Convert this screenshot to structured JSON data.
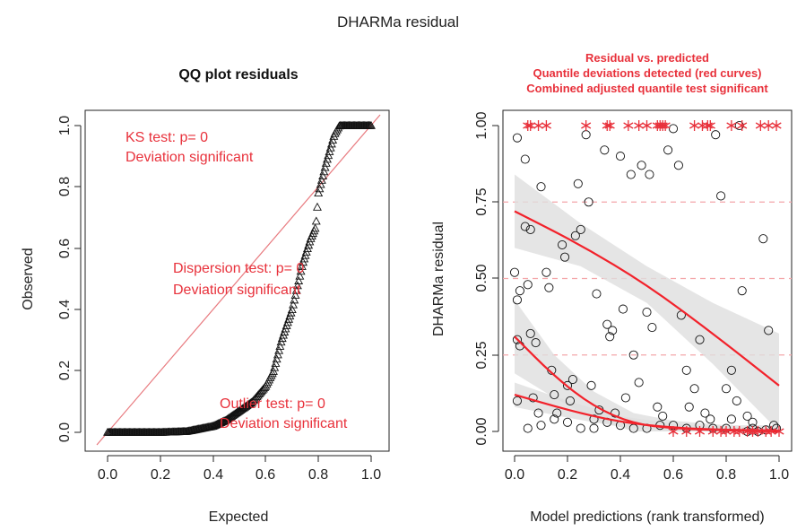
{
  "figure": {
    "title": "DHARMa residual"
  },
  "chart_data": [
    {
      "type": "scatter",
      "panel": "qq",
      "title": "QQ plot residuals",
      "xlabel": "Expected",
      "ylabel": "Observed",
      "xlim": [
        0,
        1
      ],
      "ylim": [
        0,
        1
      ],
      "x_ticks": [
        "0.0",
        "0.2",
        "0.4",
        "0.6",
        "0.8",
        "1.0"
      ],
      "y_ticks": [
        "0.0",
        "0.2",
        "0.4",
        "0.6",
        "0.8",
        "1.0"
      ],
      "grid": false,
      "marker": "triangle",
      "reference_line": {
        "from": [
          0,
          0
        ],
        "to": [
          1,
          1
        ],
        "color": "#e87a7f"
      },
      "curve": [
        [
          0.0,
          0.0
        ],
        [
          0.2,
          0.0
        ],
        [
          0.3,
          0.003
        ],
        [
          0.4,
          0.02
        ],
        [
          0.45,
          0.04
        ],
        [
          0.5,
          0.07
        ],
        [
          0.55,
          0.1
        ],
        [
          0.6,
          0.15
        ],
        [
          0.63,
          0.2
        ],
        [
          0.66,
          0.3
        ],
        [
          0.7,
          0.4
        ],
        [
          0.74,
          0.55
        ],
        [
          0.77,
          0.63
        ],
        [
          0.79,
          0.67
        ],
        [
          0.8,
          0.78
        ],
        [
          0.83,
          0.88
        ],
        [
          0.86,
          0.97
        ],
        [
          0.88,
          1.0
        ],
        [
          1.0,
          1.0
        ]
      ],
      "annotations": [
        {
          "lines": [
            "KS test: p= 0",
            "Deviation  significant"
          ],
          "color": "#e8313b"
        },
        {
          "lines": [
            "Dispersion test: p= 0",
            "Deviation  significant"
          ],
          "color": "#e8313b"
        },
        {
          "lines": [
            "Outlier test: p= 0",
            "Deviation  significant"
          ],
          "color": "#e8313b"
        }
      ]
    },
    {
      "type": "scatter",
      "panel": "residual-vs-predicted",
      "title_lines": [
        "Residual vs. predicted",
        "Quantile deviations detected (red curves)",
        "Combined adjusted quantile test significant"
      ],
      "title_color": "#e8313b",
      "xlabel": "Model predictions (rank transformed)",
      "ylabel": "DHARMa residual",
      "xlim": [
        0,
        1
      ],
      "ylim": [
        0,
        1
      ],
      "x_ticks": [
        "0.0",
        "0.2",
        "0.4",
        "0.6",
        "0.8",
        "1.0"
      ],
      "y_ticks": [
        "0.00",
        "0.25",
        "0.50",
        "0.75",
        "1.00"
      ],
      "grid": false,
      "reference_lines_y": [
        0.25,
        0.5,
        0.75
      ],
      "reference_color": "#f4a6aa",
      "quantile_curves": [
        {
          "q": 0.75,
          "points": [
            [
              0,
              0.72
            ],
            [
              0.25,
              0.61
            ],
            [
              0.5,
              0.48
            ],
            [
              0.75,
              0.32
            ],
            [
              1.0,
              0.15
            ]
          ],
          "band_upper": [
            [
              0,
              0.84
            ],
            [
              0.25,
              0.68
            ],
            [
              0.5,
              0.54
            ],
            [
              0.75,
              0.42
            ],
            [
              1.0,
              0.32
            ]
          ],
          "band_lower": [
            [
              0,
              0.6
            ],
            [
              0.25,
              0.54
            ],
            [
              0.5,
              0.42
            ],
            [
              0.75,
              0.22
            ],
            [
              1.0,
              0.0
            ]
          ]
        },
        {
          "q": 0.5,
          "points": [
            [
              0,
              0.31
            ],
            [
              0.15,
              0.18
            ],
            [
              0.3,
              0.08
            ],
            [
              0.45,
              0.025
            ],
            [
              0.6,
              0.01
            ],
            [
              0.8,
              0.003
            ],
            [
              1.0,
              0.0
            ]
          ],
          "band_upper": [
            [
              0,
              0.43
            ],
            [
              0.15,
              0.25
            ],
            [
              0.3,
              0.13
            ],
            [
              0.45,
              0.06
            ],
            [
              0.6,
              0.035
            ],
            [
              0.8,
              0.02
            ],
            [
              1.0,
              0.02
            ]
          ],
          "band_lower": [
            [
              0,
              0.19
            ],
            [
              0.15,
              0.11
            ],
            [
              0.3,
              0.04
            ],
            [
              0.45,
              0.0
            ],
            [
              0.6,
              0.0
            ],
            [
              0.8,
              0.0
            ],
            [
              1.0,
              0.0
            ]
          ]
        },
        {
          "q": 0.25,
          "points": [
            [
              0,
              0.12
            ],
            [
              0.2,
              0.07
            ],
            [
              0.4,
              0.03
            ],
            [
              0.6,
              0.012
            ],
            [
              0.8,
              0.005
            ],
            [
              1.0,
              0.003
            ]
          ],
          "band_upper": [
            [
              0,
              0.16
            ],
            [
              0.2,
              0.1
            ],
            [
              0.4,
              0.05
            ],
            [
              0.6,
              0.025
            ],
            [
              0.8,
              0.015
            ],
            [
              1.0,
              0.01
            ]
          ],
          "band_lower": [
            [
              0,
              0.08
            ],
            [
              0.2,
              0.045
            ],
            [
              0.4,
              0.015
            ],
            [
              0.6,
              0.0
            ],
            [
              0.8,
              0.0
            ],
            [
              1.0,
              0.0
            ]
          ]
        }
      ],
      "curve_color": "#f2222b",
      "band_color": "#dedede",
      "points": [
        [
          0.01,
          0.96
        ],
        [
          0.0,
          0.52
        ],
        [
          0.01,
          0.43
        ],
        [
          0.02,
          0.46
        ],
        [
          0.01,
          0.3
        ],
        [
          0.02,
          0.28
        ],
        [
          0.01,
          0.1
        ],
        [
          0.04,
          0.89
        ],
        [
          0.06,
          0.66
        ],
        [
          0.04,
          0.67
        ],
        [
          0.05,
          0.48
        ],
        [
          0.06,
          0.32
        ],
        [
          0.08,
          0.29
        ],
        [
          0.07,
          0.11
        ],
        [
          0.1,
          0.8
        ],
        [
          0.09,
          0.06
        ],
        [
          0.12,
          0.52
        ],
        [
          0.13,
          0.47
        ],
        [
          0.14,
          0.2
        ],
        [
          0.15,
          0.12
        ],
        [
          0.16,
          0.06
        ],
        [
          0.18,
          0.61
        ],
        [
          0.19,
          0.57
        ],
        [
          0.2,
          0.15
        ],
        [
          0.21,
          0.1
        ],
        [
          0.22,
          0.17
        ],
        [
          0.24,
          0.81
        ],
        [
          0.23,
          0.64
        ],
        [
          0.25,
          0.66
        ],
        [
          0.27,
          0.97
        ],
        [
          0.28,
          0.75
        ],
        [
          0.29,
          0.15
        ],
        [
          0.3,
          0.04
        ],
        [
          0.31,
          0.45
        ],
        [
          0.32,
          0.07
        ],
        [
          0.34,
          0.92
        ],
        [
          0.35,
          0.35
        ],
        [
          0.36,
          0.31
        ],
        [
          0.37,
          0.33
        ],
        [
          0.38,
          0.06
        ],
        [
          0.4,
          0.9
        ],
        [
          0.41,
          0.4
        ],
        [
          0.42,
          0.11
        ],
        [
          0.44,
          0.84
        ],
        [
          0.45,
          0.25
        ],
        [
          0.47,
          0.16
        ],
        [
          0.48,
          0.87
        ],
        [
          0.5,
          0.39
        ],
        [
          0.51,
          0.84
        ],
        [
          0.52,
          0.34
        ],
        [
          0.54,
          0.08
        ],
        [
          0.56,
          0.05
        ],
        [
          0.58,
          0.92
        ],
        [
          0.6,
          0.99
        ],
        [
          0.62,
          0.87
        ],
        [
          0.63,
          0.38
        ],
        [
          0.65,
          0.2
        ],
        [
          0.66,
          0.08
        ],
        [
          0.68,
          0.14
        ],
        [
          0.7,
          0.3
        ],
        [
          0.72,
          0.06
        ],
        [
          0.74,
          0.04
        ],
        [
          0.76,
          0.97
        ],
        [
          0.78,
          0.77
        ],
        [
          0.8,
          0.14
        ],
        [
          0.82,
          0.2
        ],
        [
          0.84,
          0.1
        ],
        [
          0.86,
          0.46
        ],
        [
          0.88,
          0.05
        ],
        [
          0.9,
          0.03
        ],
        [
          0.94,
          0.63
        ],
        [
          0.96,
          0.33
        ],
        [
          0.98,
          0.02
        ],
        [
          0.85,
          1.0
        ],
        [
          0.82,
          0.04
        ],
        [
          0.6,
          0.02
        ],
        [
          0.5,
          0.01
        ],
        [
          0.4,
          0.02
        ],
        [
          0.3,
          0.01
        ],
        [
          0.2,
          0.03
        ],
        [
          0.15,
          0.04
        ],
        [
          0.1,
          0.02
        ],
        [
          0.05,
          0.01
        ],
        [
          0.25,
          0.01
        ],
        [
          0.35,
          0.03
        ],
        [
          0.45,
          0.01
        ],
        [
          0.55,
          0.02
        ],
        [
          0.65,
          0.01
        ],
        [
          0.7,
          0.02
        ],
        [
          0.75,
          0.01
        ],
        [
          0.8,
          0.01
        ],
        [
          0.9,
          0.01
        ],
        [
          0.95,
          0.005
        ],
        [
          0.99,
          0.01
        ],
        [
          0.92,
          0.0
        ],
        [
          0.88,
          0.0
        ]
      ],
      "outlier_markers_top_x": [
        0.05,
        0.06,
        0.09,
        0.12,
        0.27,
        0.35,
        0.36,
        0.43,
        0.47,
        0.5,
        0.54,
        0.55,
        0.56,
        0.57,
        0.68,
        0.71,
        0.73,
        0.74,
        0.82,
        0.86,
        0.93,
        0.96,
        0.99
      ],
      "outlier_markers_bottom_x": [
        0.6,
        0.65,
        0.7,
        0.75,
        0.78,
        0.8,
        0.83,
        0.85,
        0.88,
        0.9,
        0.92,
        0.95,
        0.97,
        1.0
      ],
      "outlier_color": "#e8313b"
    }
  ]
}
